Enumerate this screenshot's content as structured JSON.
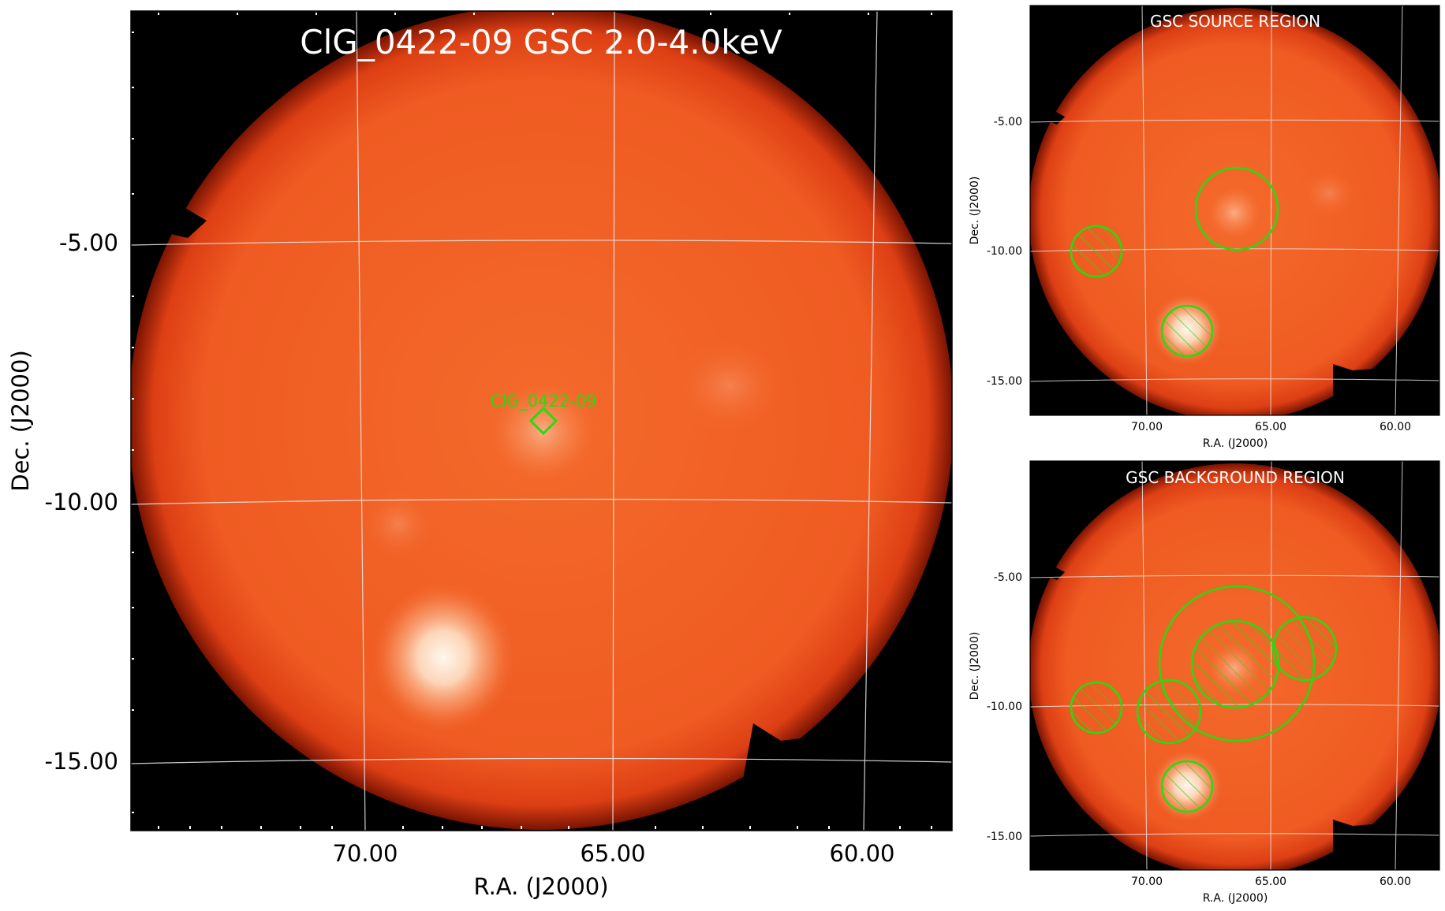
{
  "main_panel": {
    "title": "ClG_0422-09 GSC 2.0-4.0keV",
    "xlabel": "R.A. (J2000)",
    "ylabel": "Dec. (J2000)",
    "x_ticks": [
      "70.00",
      "65.00",
      "60.00"
    ],
    "y_ticks": [
      "-5.00",
      "-10.00",
      "-15.00"
    ],
    "marker_label": "ClG_0422-09"
  },
  "source_panel": {
    "title": "GSC SOURCE REGION",
    "xlabel": "R.A. (J2000)",
    "ylabel": "Dec. (J2000)",
    "x_ticks": [
      "70.00",
      "65.00",
      "60.00"
    ],
    "y_ticks": [
      "-5.00",
      "-10.00",
      "-15.00"
    ]
  },
  "background_panel": {
    "title": "GSC BACKGROUND REGION",
    "xlabel": "R.A. (J2000)",
    "ylabel": "Dec. (J2000)",
    "x_ticks": [
      "70.00",
      "65.00",
      "60.00"
    ],
    "y_ticks": [
      "-5.00",
      "-10.00",
      "-15.00"
    ]
  },
  "colors": {
    "background": "#000000",
    "field": "#ef5a22",
    "field_edge": "#c52a0c",
    "bright_source": "#fff3e6",
    "region": "#22dd11",
    "grid": "#e6e6e6"
  }
}
